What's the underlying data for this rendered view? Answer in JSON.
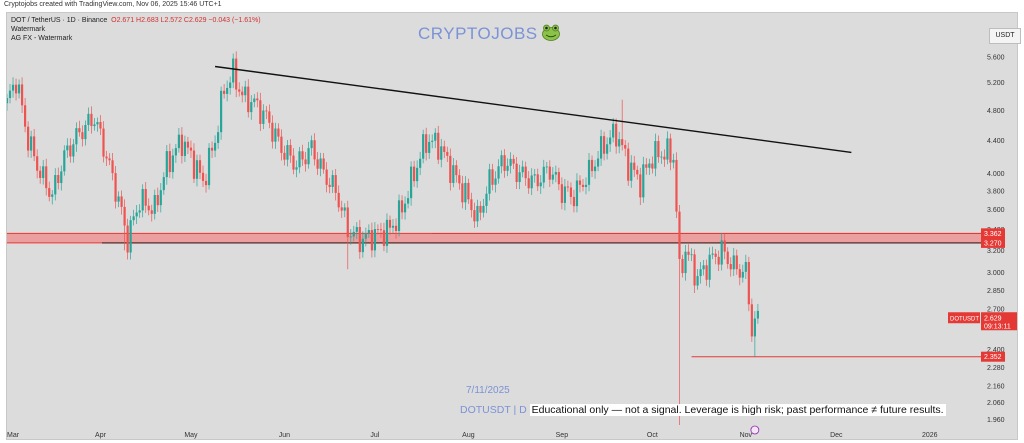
{
  "source_line": "Cryptojobs created with TradingView.com, Nov 06, 2025 15:46 UTC+1",
  "legend": {
    "symbol": "DOT / TetherUS · 1D · Binance",
    "ohlc": "O2.671  H2.683  L2.572  C2.629  −0.043 (−1.61%)",
    "line2": "Watermark",
    "line3": "AG FX - Watermark"
  },
  "brand": "CRYPTOJOBS",
  "brand_icon": "frog-face-icon",
  "currency_button": "USDT",
  "date_stamp": "7/11/2025",
  "footnote_symbol": "DOTUSDT | D",
  "footnote_text": "Educational only — not a signal. Leverage is high risk; past performance ≠ future results.",
  "colors": {
    "up": "#26a69a",
    "down": "#ef5350",
    "zone": "#f28b8b",
    "line": "#111111",
    "tag": "#e53935",
    "brand": "#7b93d6"
  },
  "chart_data": {
    "type": "candlestick",
    "title": "DOT / TetherUS · 1D · Binance",
    "ylabel": "USDT",
    "y_scale": "log",
    "ylim": [
      1.93,
      5.8
    ],
    "xlim": [
      "2025-03-01",
      "2026-01-15"
    ],
    "y_ticks": [
      "5.600",
      "5.200",
      "4.800",
      "4.400",
      "4.000",
      "3.800",
      "3.600",
      "3.400",
      "3.200",
      "3.000",
      "2.850",
      "2.700",
      "2.560",
      "2.400",
      "2.280",
      "2.160",
      "2.060",
      "1.960"
    ],
    "x_ticks": [
      {
        "label": "Mar",
        "date": "2025-03-01"
      },
      {
        "label": "Apr",
        "date": "2025-04-01"
      },
      {
        "label": "May",
        "date": "2025-05-01"
      },
      {
        "label": "Jun",
        "date": "2025-06-01"
      },
      {
        "label": "Jul",
        "date": "2025-07-01"
      },
      {
        "label": "Aug",
        "date": "2025-08-01"
      },
      {
        "label": "Sep",
        "date": "2025-09-01"
      },
      {
        "label": "Oct",
        "date": "2025-10-01"
      },
      {
        "label": "Nov",
        "date": "2025-11-01"
      },
      {
        "label": "Dec",
        "date": "2025-12-01"
      },
      {
        "label": "2026",
        "date": "2026-01-01"
      }
    ],
    "close_path": [
      [
        "2025-03-01",
        4.9
      ],
      [
        "2025-03-04",
        5.25
      ],
      [
        "2025-03-08",
        4.4
      ],
      [
        "2025-03-12",
        4.0
      ],
      [
        "2025-03-16",
        3.75
      ],
      [
        "2025-03-20",
        4.2
      ],
      [
        "2025-03-25",
        4.5
      ],
      [
        "2025-03-30",
        4.7
      ],
      [
        "2025-04-03",
        4.2
      ],
      [
        "2025-04-07",
        3.7
      ],
      [
        "2025-04-10",
        3.3
      ],
      [
        "2025-04-14",
        3.7
      ],
      [
        "2025-04-19",
        3.6
      ],
      [
        "2025-04-23",
        4.1
      ],
      [
        "2025-04-28",
        4.4
      ],
      [
        "2025-05-01",
        4.2
      ],
      [
        "2025-05-05",
        3.9
      ],
      [
        "2025-05-09",
        4.4
      ],
      [
        "2025-05-12",
        5.1
      ],
      [
        "2025-05-15",
        5.35
      ],
      [
        "2025-05-18",
        5.0
      ],
      [
        "2025-05-22",
        4.9
      ],
      [
        "2025-05-26",
        4.7
      ],
      [
        "2025-05-31",
        4.3
      ],
      [
        "2025-06-05",
        4.1
      ],
      [
        "2025-06-10",
        4.3
      ],
      [
        "2025-06-14",
        4.0
      ],
      [
        "2025-06-18",
        3.8
      ],
      [
        "2025-06-22",
        3.4
      ],
      [
        "2025-06-26",
        3.3
      ],
      [
        "2025-07-01",
        3.35
      ],
      [
        "2025-07-06",
        3.4
      ],
      [
        "2025-07-10",
        3.6
      ],
      [
        "2025-07-14",
        4.0
      ],
      [
        "2025-07-18",
        4.4
      ],
      [
        "2025-07-22",
        4.35
      ],
      [
        "2025-07-27",
        4.0
      ],
      [
        "2025-08-01",
        3.7
      ],
      [
        "2025-08-04",
        3.5
      ],
      [
        "2025-08-08",
        3.9
      ],
      [
        "2025-08-13",
        4.15
      ],
      [
        "2025-08-18",
        4.0
      ],
      [
        "2025-08-23",
        3.9
      ],
      [
        "2025-08-28",
        4.05
      ],
      [
        "2025-09-01",
        3.8
      ],
      [
        "2025-09-05",
        3.75
      ],
      [
        "2025-09-10",
        4.0
      ],
      [
        "2025-09-15",
        4.35
      ],
      [
        "2025-09-19",
        4.5
      ],
      [
        "2025-09-23",
        4.1
      ],
      [
        "2025-09-27",
        3.9
      ],
      [
        "2025-10-01",
        4.2
      ],
      [
        "2025-10-05",
        4.25
      ],
      [
        "2025-10-08",
        4.2
      ],
      [
        "2025-10-10",
        3.0
      ],
      [
        "2025-10-12",
        3.2
      ],
      [
        "2025-10-16",
        2.95
      ],
      [
        "2025-10-20",
        3.1
      ],
      [
        "2025-10-24",
        3.2
      ],
      [
        "2025-10-28",
        3.05
      ],
      [
        "2025-11-01",
        3.0
      ],
      [
        "2025-11-03",
        2.55
      ],
      [
        "2025-11-05",
        2.629
      ]
    ],
    "spikes": [
      {
        "date": "2025-04-09",
        "low": 3.2
      },
      {
        "date": "2025-06-22",
        "low": 3.03
      },
      {
        "date": "2025-09-21",
        "high": 4.95
      },
      {
        "date": "2025-10-10",
        "low": 1.93
      },
      {
        "date": "2025-11-04",
        "low": 2.352
      }
    ],
    "trendline": [
      [
        "2025-05-09",
        5.45
      ],
      [
        "2025-12-06",
        4.25
      ]
    ],
    "support_zone": {
      "from": 3.27,
      "to": 3.362,
      "start": "2025-03-01"
    },
    "support_line_2": {
      "value": 3.36,
      "start": "2025-07-20"
    },
    "low_line": {
      "value": 2.352,
      "start": "2025-10-14"
    },
    "price_tags": [
      {
        "label": "3.362",
        "value": 3.362
      },
      {
        "label": "3.270",
        "value": 3.27
      },
      {
        "label": "2.352",
        "value": 2.352
      }
    ],
    "last_price": {
      "symbol": "DOTUSDT",
      "value": "2.629",
      "countdown": "09:13:11",
      "level": 2.629
    }
  }
}
